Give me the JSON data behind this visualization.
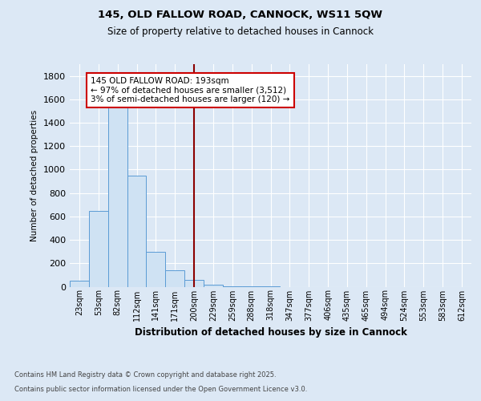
{
  "title1": "145, OLD FALLOW ROAD, CANNOCK, WS11 5QW",
  "title2": "Size of property relative to detached houses in Cannock",
  "xlabel": "Distribution of detached houses by size in Cannock",
  "ylabel": "Number of detached properties",
  "categories": [
    "23sqm",
    "53sqm",
    "82sqm",
    "112sqm",
    "141sqm",
    "171sqm",
    "200sqm",
    "229sqm",
    "259sqm",
    "288sqm",
    "318sqm",
    "347sqm",
    "377sqm",
    "406sqm",
    "435sqm",
    "465sqm",
    "494sqm",
    "524sqm",
    "553sqm",
    "583sqm",
    "612sqm"
  ],
  "values": [
    50,
    650,
    1550,
    950,
    300,
    140,
    60,
    15,
    4,
    2,
    1,
    0,
    0,
    0,
    0,
    0,
    0,
    0,
    0,
    0,
    0
  ],
  "bar_color": "#cfe2f3",
  "bar_edge_color": "#5b9bd5",
  "vline_pos": 6.5,
  "vline_color": "#8b0000",
  "annotation_text": "145 OLD FALLOW ROAD: 193sqm\n← 97% of detached houses are smaller (3,512)\n3% of semi-detached houses are larger (120) →",
  "annotation_box_edgecolor": "#cc0000",
  "annotation_box_facecolor": "#ffffff",
  "ylim": [
    0,
    1900
  ],
  "yticks": [
    0,
    200,
    400,
    600,
    800,
    1000,
    1200,
    1400,
    1600,
    1800
  ],
  "background_color": "#dce8f5",
  "grid_color": "#ffffff",
  "footnote1": "Contains HM Land Registry data © Crown copyright and database right 2025.",
  "footnote2": "Contains public sector information licensed under the Open Government Licence v3.0."
}
